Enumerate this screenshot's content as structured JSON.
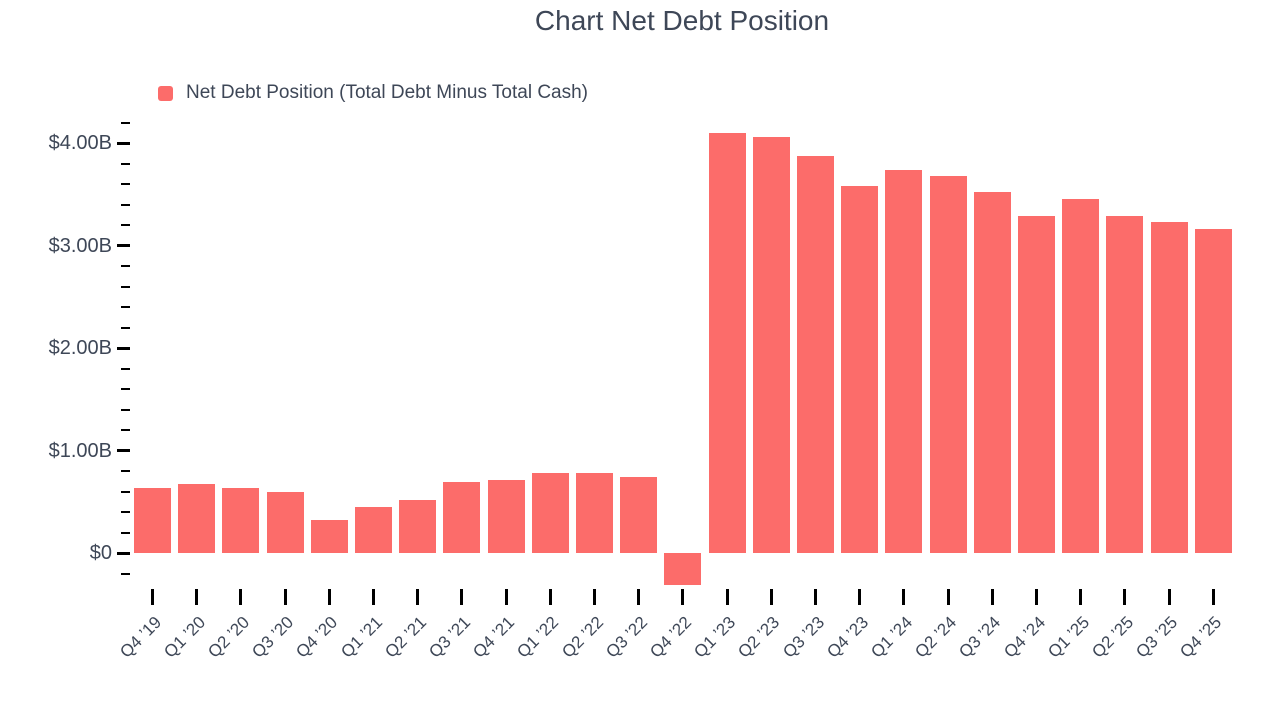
{
  "page": {
    "background": "#ffffff"
  },
  "chart_data": {
    "type": "bar",
    "title": "Chart Net Debt Position",
    "legend": {
      "label": "Net Debt Position (Total Debt Minus Total Cash)",
      "position": "top-left"
    },
    "categories": [
      "Q4 ’19",
      "Q1 ’20",
      "Q2 ’20",
      "Q3 ’20",
      "Q4 ’20",
      "Q1 ’21",
      "Q2 ’21",
      "Q3 ’21",
      "Q4 ’21",
      "Q1 ’22",
      "Q2 ’22",
      "Q3 ’22",
      "Q4 ’22",
      "Q1 ’23",
      "Q2 ’23",
      "Q3 ’23",
      "Q4 ’23",
      "Q1 ’24",
      "Q2 ’24",
      "Q3 ’24",
      "Q4 ’24",
      "Q1 ’25",
      "Q2 ’25",
      "Q3 ’25",
      "Q4 ’25"
    ],
    "series": [
      {
        "name": "Net Debt Position (Total Debt Minus Total Cash)",
        "values": [
          0.63,
          0.67,
          0.63,
          0.6,
          0.32,
          0.45,
          0.52,
          0.69,
          0.71,
          0.78,
          0.78,
          0.74,
          -0.31,
          4.1,
          4.06,
          3.87,
          3.58,
          3.74,
          3.68,
          3.52,
          3.29,
          3.45,
          3.29,
          3.23,
          3.16
        ]
      }
    ],
    "value_unit": "USD billions",
    "xlabel": "",
    "ylabel": "",
    "y_axis": {
      "major_ticks": [
        {
          "value": 4,
          "label": "$4.00B"
        },
        {
          "value": 3,
          "label": "$3.00B"
        },
        {
          "value": 2,
          "label": "$2.00B"
        },
        {
          "value": 1,
          "label": "$1.00B"
        },
        {
          "value": 0,
          "label": "$0"
        }
      ],
      "minor_tick_step": 0.2,
      "minor_tick_range": [
        -0.2,
        4.2
      ],
      "range": [
        -0.45,
        4.25
      ],
      "grid": false
    },
    "legend_position": "top-left",
    "colors": {
      "bar": "#FC6C6A",
      "title_text": "#3E4757",
      "axis_label_text": "#3E4757",
      "tick_mark": "#000000"
    }
  }
}
